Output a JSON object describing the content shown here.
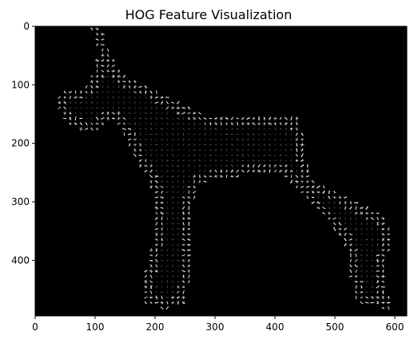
{
  "title": "HOG Feature Visualization",
  "image": {
    "width": 620,
    "height": 495,
    "background_color": "#000000",
    "feature_color": "#ffffff",
    "subject": "dog-silhouette"
  },
  "axes": {
    "xlim": [
      0,
      620
    ],
    "ylim": [
      495,
      0
    ],
    "x_ticks": [
      0,
      100,
      200,
      300,
      400,
      500,
      600
    ],
    "y_ticks": [
      0,
      100,
      200,
      300,
      400
    ],
    "x_tick_labels": [
      "0",
      "100",
      "200",
      "300",
      "400",
      "500",
      "600"
    ],
    "y_tick_labels": [
      "0",
      "100",
      "200",
      "300",
      "400"
    ]
  }
}
